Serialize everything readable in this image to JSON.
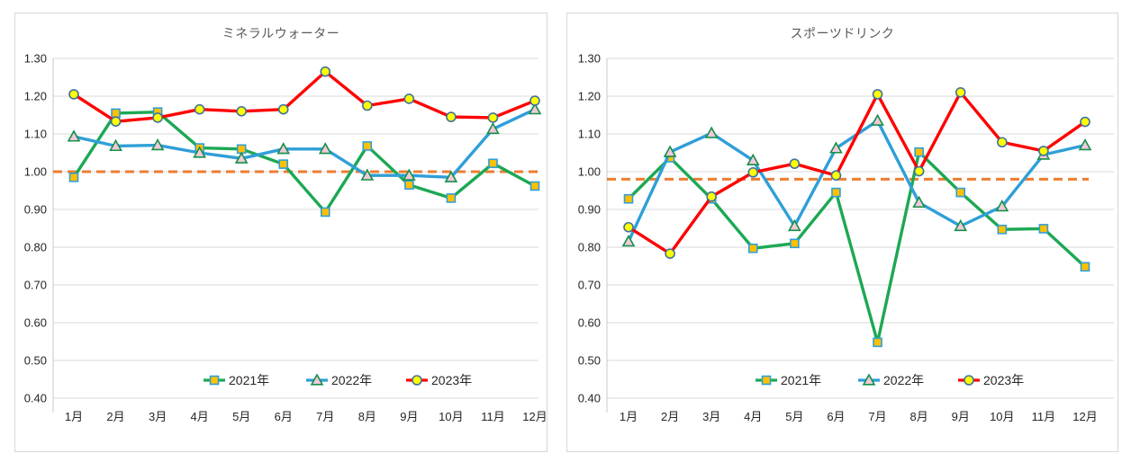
{
  "palette": {
    "gridline": "#d9d9d9",
    "axis_line": "#c9c9c9",
    "tick_label_color": "#262626",
    "title_color": "#595959",
    "legend_text_color": "#262626",
    "card_border": "#d6d6d6",
    "background": "#ffffff"
  },
  "chart_data": [
    {
      "type": "line",
      "title": "ミネラルウォーター",
      "xlabel": "",
      "ylabel": "",
      "ylim": [
        0.4,
        1.3
      ],
      "grid": true,
      "legend_position": "bottom-inside",
      "y_tick_labels": [
        "1.30",
        "1.20",
        "1.10",
        "1.00",
        "0.90",
        "0.80",
        "0.70",
        "0.60",
        "0.50",
        "0.40"
      ],
      "categories": [
        "1月",
        "2月",
        "3月",
        "4月",
        "5月",
        "6月",
        "7月",
        "8月",
        "9月",
        "10月",
        "11月",
        "12月"
      ],
      "reference_line": {
        "value": 1.0,
        "style": "dashed",
        "color": "#ed7d31"
      },
      "series": [
        {
          "name": "2021年",
          "color": "#1ca853",
          "marker": "square",
          "marker_fill": "#ffc000",
          "marker_border": "#2f9fd8",
          "values": [
            0.985,
            1.155,
            1.158,
            1.063,
            1.06,
            1.02,
            0.893,
            1.068,
            0.965,
            0.93,
            1.022,
            0.962
          ]
        },
        {
          "name": "2022年",
          "color": "#2f9fd8",
          "marker": "triangle",
          "marker_fill": "#f2c8dc",
          "marker_border": "#149048",
          "values": [
            1.093,
            1.068,
            1.07,
            1.05,
            1.035,
            1.06,
            1.06,
            0.99,
            0.99,
            0.985,
            1.113,
            1.165
          ]
        },
        {
          "name": "2023年",
          "color": "#ff0000",
          "marker": "circle",
          "marker_fill": "#ffff00",
          "marker_border": "#41719c",
          "values": [
            1.205,
            1.133,
            1.143,
            1.165,
            1.16,
            1.165,
            1.265,
            1.175,
            1.193,
            1.145,
            1.143,
            1.188
          ]
        }
      ]
    },
    {
      "type": "line",
      "title": "スポーツドリンク",
      "xlabel": "",
      "ylabel": "",
      "ylim": [
        0.4,
        1.3
      ],
      "grid": true,
      "legend_position": "bottom-inside",
      "y_tick_labels": [
        "1.30",
        "1.20",
        "1.10",
        "1.00",
        "0.90",
        "0.80",
        "0.70",
        "0.60",
        "0.50",
        "0.40"
      ],
      "categories": [
        "1月",
        "2月",
        "3月",
        "4月",
        "5月",
        "6月",
        "7月",
        "8月",
        "9月",
        "10月",
        "11月",
        "12月"
      ],
      "reference_line": {
        "value": 0.98,
        "style": "dashed",
        "color": "#ed7d31"
      },
      "series": [
        {
          "name": "2021年",
          "color": "#1ca853",
          "marker": "square",
          "marker_fill": "#ffc000",
          "marker_border": "#2f9fd8",
          "values": [
            0.928,
            1.037,
            0.928,
            0.797,
            0.81,
            0.945,
            0.548,
            1.052,
            0.945,
            0.847,
            0.849,
            0.748
          ]
        },
        {
          "name": "2022年",
          "color": "#2f9fd8",
          "marker": "triangle",
          "marker_fill": "#f2c8dc",
          "marker_border": "#149048",
          "values": [
            0.815,
            1.052,
            1.102,
            1.03,
            0.856,
            1.062,
            1.135,
            0.918,
            0.856,
            0.908,
            1.045,
            1.07
          ]
        },
        {
          "name": "2023年",
          "color": "#ff0000",
          "marker": "circle",
          "marker_fill": "#ffff00",
          "marker_border": "#41719c",
          "values": [
            0.853,
            0.783,
            0.934,
            0.998,
            1.021,
            0.99,
            1.205,
            1.001,
            1.21,
            1.078,
            1.055,
            1.132
          ]
        }
      ]
    }
  ]
}
